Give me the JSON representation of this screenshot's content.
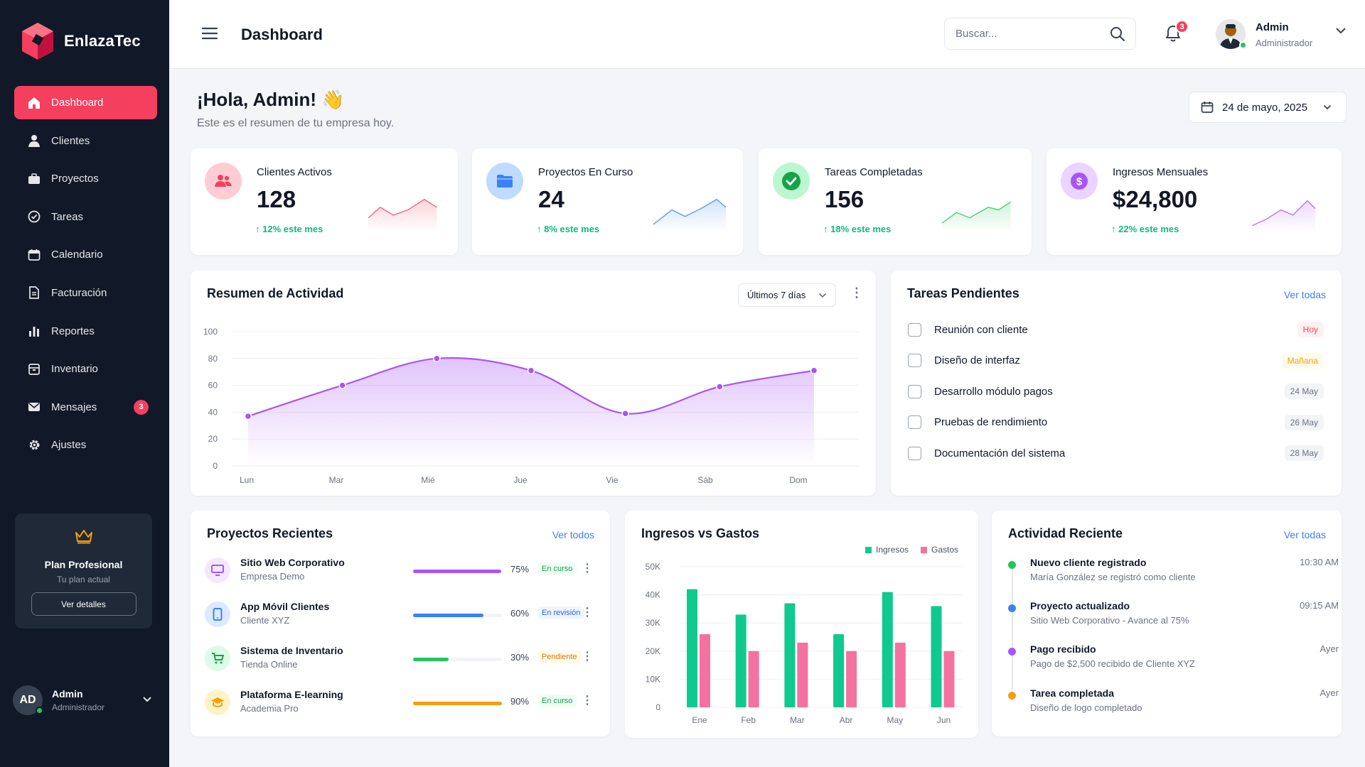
{
  "brand": {
    "name": "EnlazaTec",
    "primary": "#f43f5e"
  },
  "sidebar": {
    "items": [
      {
        "label": "Dashboard",
        "icon": "home-icon",
        "active": true
      },
      {
        "label": "Clientes",
        "icon": "user-icon"
      },
      {
        "label": "Proyectos",
        "icon": "briefcase-icon"
      },
      {
        "label": "Tareas",
        "icon": "check-circle-icon"
      },
      {
        "label": "Calendario",
        "icon": "calendar-icon"
      },
      {
        "label": "Facturación",
        "icon": "invoice-icon"
      },
      {
        "label": "Reportes",
        "icon": "bar-chart-icon"
      },
      {
        "label": "Inventario",
        "icon": "box-icon"
      },
      {
        "label": "Mensajes",
        "icon": "mail-icon",
        "badge": "3"
      },
      {
        "label": "Ajustes",
        "icon": "gear-icon"
      }
    ],
    "plan": {
      "title": "Plan Profesional",
      "subtitle": "Tu plan actual",
      "button": "Ver detalles"
    },
    "user": {
      "initials": "AD",
      "name": "Admin",
      "role": "Administrador"
    }
  },
  "topbar": {
    "title": "Dashboard",
    "search_placeholder": "Buscar...",
    "notifications": "3",
    "user_name": "Admin",
    "user_role": "Administrador"
  },
  "greeting": {
    "title": "¡Hola, Admin! 👋",
    "subtitle": "Este es el resumen de tu empresa hoy.",
    "date": "24 de mayo, 2025"
  },
  "stats": [
    {
      "label": "Clientes Activos",
      "value": "128",
      "trend": "↑ 12% este mes",
      "color": "#f43f5e"
    },
    {
      "label": "Proyectos En Curso",
      "value": "24",
      "trend": "↑ 8% este mes",
      "color": "#3b82f6"
    },
    {
      "label": "Tareas Completadas",
      "value": "156",
      "trend": "↑ 18% este mes",
      "color": "#22c55e"
    },
    {
      "label": "Ingresos Mensuales",
      "value": "$24,800",
      "trend": "↑ 22% este mes",
      "color": "#a855f7"
    }
  ],
  "activity": {
    "title": "Resumen de Actividad",
    "range": "Últimos 7 días",
    "chart_data": {
      "type": "area",
      "categories": [
        "Lun",
        "Mar",
        "Mié",
        "Jue",
        "Vie",
        "Sáb",
        "Dom"
      ],
      "x": [
        0,
        1,
        2,
        3,
        4,
        5,
        6
      ],
      "values": [
        37,
        60,
        80,
        71,
        39,
        59,
        71
      ],
      "yticks": [
        0,
        20,
        40,
        60,
        80,
        100
      ],
      "ylim": [
        0,
        100
      ],
      "color": "#a855f7",
      "grid": true
    }
  },
  "tasks": {
    "title": "Tareas Pendientes",
    "link": "Ver todas",
    "items": [
      {
        "label": "Reunión con cliente",
        "tag": "Hoy",
        "tag_color": "#f43f5e",
        "tag_bg": "#fff1f2"
      },
      {
        "label": "Diseño de interfaz",
        "tag": "Mañana",
        "tag_color": "#f59e0b",
        "tag_bg": "#fffbeb"
      },
      {
        "label": "Desarrollo módulo pagos",
        "tag": "24 May",
        "tag_color": "#6b7280",
        "tag_bg": "#f3f4f6"
      },
      {
        "label": "Pruebas de rendimiento",
        "tag": "26 May",
        "tag_color": "#6b7280",
        "tag_bg": "#f3f4f6"
      },
      {
        "label": "Documentación del sistema",
        "tag": "28 May",
        "tag_color": "#6b7280",
        "tag_bg": "#f3f4f6"
      }
    ]
  },
  "projects": {
    "title": "Proyectos Recientes",
    "link": "Ver todos",
    "items": [
      {
        "name": "Sitio Web Corporativo",
        "client": "Empresa Demo",
        "progress": 75,
        "pct": "75%",
        "status": "En curso",
        "color": "#a855f7",
        "status_color": "#16a34a",
        "status_bg": "#f0fdf4"
      },
      {
        "name": "App Móvil Clientes",
        "client": "Cliente XYZ",
        "progress": 60,
        "pct": "60%",
        "status": "En revisión",
        "color": "#3b82f6",
        "status_color": "#2563eb",
        "status_bg": "#eff6ff"
      },
      {
        "name": "Sistema de Inventario",
        "client": "Tienda Online",
        "progress": 30,
        "pct": "30%",
        "status": "Pendiente",
        "color": "#22c55e",
        "status_color": "#d97706",
        "status_bg": "#fffbeb"
      },
      {
        "name": "Plataforma E-learning",
        "client": "Academia Pro",
        "progress": 90,
        "pct": "90%",
        "status": "En curso",
        "color": "#f59e0b",
        "status_color": "#16a34a",
        "status_bg": "#f0fdf4"
      }
    ]
  },
  "income": {
    "title": "Ingresos vs Gastos",
    "chart_data": {
      "type": "bar",
      "categories": [
        "Ene",
        "Feb",
        "Mar",
        "Abr",
        "May",
        "Jun"
      ],
      "series": [
        {
          "name": "Ingresos",
          "values": [
            42000,
            33000,
            37000,
            26000,
            41000,
            36000
          ],
          "color": "#10c98f"
        },
        {
          "name": "Gastos",
          "values": [
            26000,
            20000,
            23000,
            20000,
            23000,
            20000
          ],
          "color": "#f472a0"
        }
      ],
      "yticks": [
        "0",
        "10K",
        "20K",
        "30K",
        "40K",
        "50K"
      ],
      "ylim": [
        0,
        50000
      ],
      "legend": "top-right"
    }
  },
  "recent": {
    "title": "Actividad Reciente",
    "link": "Ver todas",
    "items": [
      {
        "title": "Nuevo cliente registrado",
        "desc": "María González se registró como cliente",
        "time": "10:30 AM",
        "color": "#22c55e"
      },
      {
        "title": "Proyecto actualizado",
        "desc": "Sitio Web Corporativo - Avance al 75%",
        "time": "09:15 AM",
        "color": "#3b82f6"
      },
      {
        "title": "Pago recibido",
        "desc": "Pago de $2,500 recibido de Cliente XYZ",
        "time": "Ayer",
        "color": "#a855f7"
      },
      {
        "title": "Tarea completada",
        "desc": "Diseño de logo completado",
        "time": "Ayer",
        "color": "#f59e0b"
      }
    ]
  }
}
